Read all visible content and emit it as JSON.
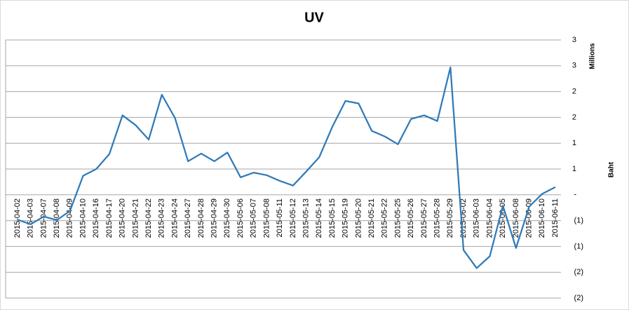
{
  "chart_data": {
    "type": "line",
    "title": "UV",
    "y_axis_label": "Baht",
    "y_axis_unit": "Millions",
    "categories": [
      "2015-04-02",
      "2015-04-03",
      "2015-04-07",
      "2015-04-08",
      "2015-04-09",
      "2015-04-10",
      "2015-04-16",
      "2015-04-17",
      "2015-04-20",
      "2015-04-21",
      "2015-04-22",
      "2015-04-23",
      "2015-04-24",
      "2015-04-27",
      "2015-04-28",
      "2015-04-29",
      "2015-04-30",
      "2015-05-06",
      "2015-05-07",
      "2015-05-08",
      "2015-05-11",
      "2015-05-12",
      "2015-05-13",
      "2015-05-14",
      "2015-05-15",
      "2015-05-19",
      "2015-05-20",
      "2015-05-21",
      "2015-05-22",
      "2015-05-25",
      "2015-05-26",
      "2015-05-27",
      "2015-05-28",
      "2015-05-29",
      "2015-06-02",
      "2015-06-03",
      "2015-06-04",
      "2015-06-05",
      "2015-06-08",
      "2015-06-09",
      "2015-06-10",
      "2015-06-11"
    ],
    "series": [
      {
        "name": "UV",
        "color": "#2f7ab9",
        "values": [
          -0.48,
          -0.57,
          -0.42,
          -0.49,
          -0.31,
          0.37,
          0.5,
          0.79,
          1.54,
          1.35,
          1.07,
          1.94,
          1.49,
          0.65,
          0.8,
          0.65,
          0.82,
          0.34,
          0.43,
          0.38,
          0.27,
          0.18,
          0.45,
          0.73,
          1.32,
          1.82,
          1.77,
          1.24,
          1.13,
          0.98,
          1.47,
          1.54,
          1.43,
          2.47,
          -1.07,
          -1.42,
          -1.19,
          -0.21,
          -1.03,
          -0.23,
          0.02,
          0.15
        ]
      }
    ],
    "ylim": [
      -2,
      3
    ],
    "yticks": [
      {
        "value": 3,
        "label": "3"
      },
      {
        "value": 2.5,
        "label": "3"
      },
      {
        "value": 2,
        "label": "2"
      },
      {
        "value": 1.5,
        "label": "2"
      },
      {
        "value": 1,
        "label": "1"
      },
      {
        "value": 0.5,
        "label": "1"
      },
      {
        "value": 0,
        "label": "-"
      },
      {
        "value": -0.5,
        "label": "(1)"
      },
      {
        "value": -1,
        "label": "(1)"
      },
      {
        "value": -1.5,
        "label": "(2)"
      },
      {
        "value": -2,
        "label": "(2)"
      }
    ],
    "grid": true
  }
}
